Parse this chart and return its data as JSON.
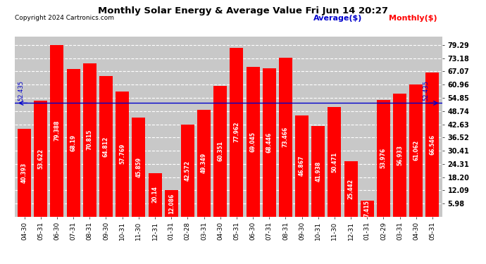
{
  "title": "Monthly Solar Energy & Average Value Fri Jun 14 20:27",
  "copyright": "Copyright 2024 Cartronics.com",
  "categories": [
    "04-30",
    "05-31",
    "06-30",
    "07-31",
    "08-31",
    "09-30",
    "10-31",
    "11-30",
    "12-31",
    "01-31",
    "02-28",
    "03-31",
    "04-30",
    "05-31",
    "06-30",
    "07-31",
    "08-31",
    "09-30",
    "10-31",
    "11-30",
    "12-31",
    "01-31",
    "02-29",
    "03-31",
    "04-30",
    "05-31"
  ],
  "values": [
    40.393,
    53.622,
    79.388,
    68.19,
    70.815,
    64.812,
    57.769,
    45.859,
    20.14,
    12.086,
    42.572,
    49.349,
    60.351,
    77.962,
    69.045,
    68.446,
    73.466,
    46.867,
    41.938,
    50.471,
    25.442,
    7.415,
    53.976,
    56.933,
    61.062,
    66.546
  ],
  "average": 52.435,
  "yticks": [
    5.98,
    12.09,
    18.2,
    24.31,
    30.41,
    36.52,
    42.63,
    48.74,
    54.85,
    60.96,
    67.07,
    73.18,
    79.29
  ],
  "ymin": 0,
  "ymax": 83,
  "bar_color": "#ff0000",
  "avg_line_color": "#0000cc",
  "avg_label": "Average($)",
  "monthly_label": "Monthly($)",
  "avg_label_color": "#0000cc",
  "monthly_label_color": "#ff0000",
  "avg_annotation": "52.435",
  "background_color": "#ffffff",
  "grid_color": "#ffffff",
  "plot_bg_color": "#c8c8c8",
  "value_font_size": 5.5,
  "bar_width": 0.82
}
